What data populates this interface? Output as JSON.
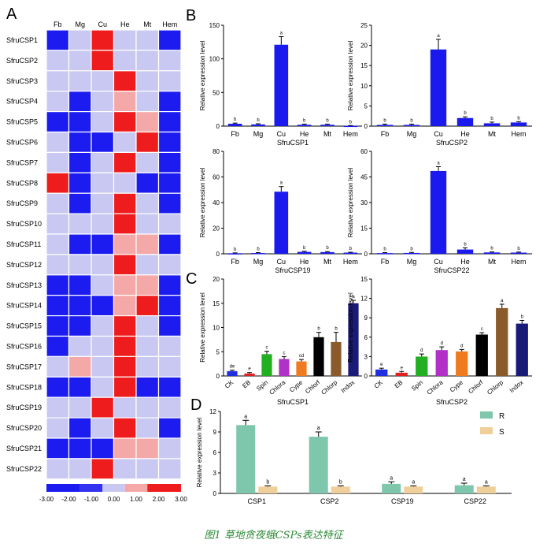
{
  "caption": "图1 草地贪夜蛾CSPs表达特征",
  "colors": {
    "bar_blue": "#1a1aee",
    "r_green": "#7fc7ac",
    "s_tan": "#f0d09a"
  },
  "heatmap": {
    "panel_label": "A",
    "columns": [
      "Fb",
      "Mg",
      "Cu",
      "He",
      "Mt",
      "Hem"
    ],
    "rows": [
      "SfruCSP1",
      "SfruCSP2",
      "SfruCSP3",
      "SfruCSP4",
      "SfruCSP5",
      "SfruCSP6",
      "SfruCSP7",
      "SfruCSP8",
      "SfruCSP9",
      "SfruCSP10",
      "SfruCSP11",
      "SfruCSP12",
      "SfruCSP13",
      "SfruCSP14",
      "SfruCSP15",
      "SfruCSP16",
      "SfruCSP17",
      "SfruCSP18",
      "SfruCSP19",
      "SfruCSP20",
      "SfruCSP21",
      "SfruCSP22"
    ],
    "values": [
      [
        -2.5,
        -0.5,
        2.5,
        -0.5,
        -0.5,
        -2.5
      ],
      [
        -0.5,
        -0.5,
        2.5,
        -0.5,
        -0.5,
        -0.5
      ],
      [
        -0.5,
        -0.5,
        -0.5,
        2.5,
        -0.5,
        -0.5
      ],
      [
        -0.5,
        -2.5,
        -0.5,
        1.0,
        -0.5,
        -2.5
      ],
      [
        -2.5,
        -2.5,
        -0.5,
        2.5,
        1.0,
        -2.5
      ],
      [
        -0.5,
        -2.5,
        -2.5,
        -0.5,
        2.5,
        -2.5
      ],
      [
        -0.5,
        -2.5,
        -0.5,
        2.5,
        -0.5,
        -2.5
      ],
      [
        2.5,
        -2.5,
        -0.5,
        -0.5,
        -2.5,
        -2.5
      ],
      [
        -0.5,
        -2.5,
        -0.5,
        2.5,
        -0.5,
        -2.5
      ],
      [
        -0.5,
        -0.5,
        -0.5,
        2.5,
        -0.5,
        -0.5
      ],
      [
        -0.5,
        -2.5,
        -2.5,
        1.0,
        1.0,
        -2.5
      ],
      [
        -0.5,
        -0.5,
        -0.5,
        2.5,
        -0.5,
        -0.5
      ],
      [
        -2.5,
        -2.5,
        -0.5,
        1.0,
        1.0,
        -2.5
      ],
      [
        -2.5,
        -2.5,
        -2.5,
        1.0,
        2.5,
        -2.5
      ],
      [
        -2.5,
        -2.5,
        -0.5,
        2.5,
        -0.5,
        -2.5
      ],
      [
        -2.5,
        -0.5,
        -0.5,
        2.5,
        -0.5,
        -0.5
      ],
      [
        -0.5,
        1.0,
        -0.5,
        2.5,
        -0.5,
        -0.5
      ],
      [
        -2.5,
        -2.5,
        -0.5,
        2.5,
        -2.5,
        -2.5
      ],
      [
        -0.5,
        -0.5,
        2.5,
        -0.5,
        -0.5,
        -0.5
      ],
      [
        -0.5,
        -2.5,
        -0.5,
        2.5,
        -0.5,
        -2.5
      ],
      [
        -2.5,
        -2.5,
        -2.5,
        1.0,
        1.0,
        -0.5
      ],
      [
        -0.5,
        -0.5,
        2.5,
        -0.5,
        -0.5,
        -0.5
      ]
    ],
    "scale_ticks": [
      "-3.00",
      "-2.00",
      "-1.00",
      "0.00",
      "1.00",
      "2.00",
      "3.00"
    ]
  },
  "chart_data": [
    {
      "panel": "B",
      "type": "bar",
      "title": "SfruCSP1",
      "ylabel": "Relative expression level",
      "categories": [
        "Fb",
        "Mg",
        "Cu",
        "He",
        "Mt",
        "Hem"
      ],
      "values": [
        3.5,
        2.5,
        121,
        2,
        2,
        0.5
      ],
      "errors": [
        1,
        1,
        12,
        1,
        1,
        0.3
      ],
      "letters": [
        "b",
        "b",
        "a",
        "b",
        "b",
        "b"
      ],
      "ylim": [
        0,
        150
      ],
      "yticks": [
        "0",
        "50",
        "100",
        "150"
      ]
    },
    {
      "panel": "B",
      "type": "bar",
      "title": "SfruCSP2",
      "ylabel": "Relative expression level",
      "categories": [
        "Fb",
        "Mg",
        "Cu",
        "He",
        "Mt",
        "Hem"
      ],
      "values": [
        0.3,
        0.3,
        19,
        2,
        0.7,
        0.9
      ],
      "errors": [
        0.2,
        0.2,
        2.5,
        0.3,
        0.3,
        0.2
      ],
      "letters": [
        "b",
        "b",
        "a",
        "b",
        "b",
        "b"
      ],
      "ylim": [
        0,
        25
      ],
      "yticks": [
        "0",
        "5",
        "10",
        "15",
        "20",
        "25"
      ]
    },
    {
      "panel": "B",
      "type": "bar",
      "title": "SfruCSP19",
      "ylabel": "Relative expression level",
      "categories": [
        "Fb",
        "Mg",
        "Cu",
        "He",
        "Mt",
        "Hem"
      ],
      "values": [
        0.4,
        0.6,
        48.5,
        1.5,
        1.3,
        0.9
      ],
      "errors": [
        0.3,
        0.3,
        4,
        0.5,
        0.4,
        0.3
      ],
      "letters": [
        "b",
        "b",
        "a",
        "b",
        "b",
        "b"
      ],
      "ylim": [
        0,
        80
      ],
      "yticks": [
        "0",
        "20",
        "40",
        "60",
        "80"
      ]
    },
    {
      "panel": "B",
      "type": "bar",
      "title": "SfruCSP22",
      "ylabel": "Relative expression level",
      "categories": [
        "Fb",
        "Mg",
        "Cu",
        "He",
        "Mt",
        "Hem"
      ],
      "values": [
        0.4,
        0.5,
        48.5,
        2.5,
        0.8,
        0.7
      ],
      "errors": [
        0.3,
        0.3,
        2.5,
        1,
        0.3,
        0.3
      ],
      "letters": [
        "b",
        "b",
        "a",
        "b",
        "b",
        "b"
      ],
      "ylim": [
        0,
        60
      ],
      "yticks": [
        "0",
        "15",
        "30",
        "45",
        "60"
      ]
    },
    {
      "panel": "C",
      "type": "bar",
      "title": "SfruCSP1",
      "ylabel": "Relative expression level",
      "categories": [
        "CK",
        "EB",
        "Spin",
        "Chlora",
        "Cype",
        "Chlorf",
        "Chlorp",
        "Indox"
      ],
      "values": [
        1,
        0.5,
        4.5,
        3.5,
        3,
        8,
        7,
        15
      ],
      "errors": [
        0.2,
        0.2,
        0.6,
        0.5,
        0.4,
        1,
        2,
        0.6
      ],
      "letters": [
        "de",
        "e",
        "c",
        "c",
        "cd",
        "b",
        "b",
        "a"
      ],
      "bar_colors": [
        "#1f2ee0",
        "#e02020",
        "#22b022",
        "#b030c8",
        "#f07a20",
        "#000000",
        "#8a5a2a",
        "#1a1a78"
      ],
      "ylim": [
        0,
        20
      ],
      "yticks": [
        "0",
        "5",
        "10",
        "15",
        "20"
      ]
    },
    {
      "panel": "C",
      "type": "bar",
      "title": "SfruCSP2",
      "ylabel": "Relative expression level",
      "categories": [
        "CK",
        "EB",
        "Spin",
        "Chlora",
        "Cype",
        "Chlorf",
        "Chlorp",
        "Indox"
      ],
      "values": [
        1,
        0.5,
        3,
        4,
        3.8,
        6.4,
        10.5,
        8.1
      ],
      "errors": [
        0.2,
        0.2,
        0.4,
        0.5,
        0.3,
        0.3,
        0.6,
        0.5
      ],
      "letters": [
        "e",
        "e",
        "d",
        "d",
        "d",
        "c",
        "a",
        "b"
      ],
      "bar_colors": [
        "#1f2ee0",
        "#e02020",
        "#22b022",
        "#b030c8",
        "#f07a20",
        "#000000",
        "#8a5a2a",
        "#1a1a78"
      ],
      "ylim": [
        0,
        15
      ],
      "yticks": [
        "0",
        "3",
        "6",
        "9",
        "12",
        "15"
      ]
    },
    {
      "panel": "D",
      "type": "bar",
      "ylabel": "Relative expression level",
      "categories": [
        "CSP1",
        "CSP2",
        "CSP19",
        "CSP22"
      ],
      "series": [
        {
          "name": "R",
          "values": [
            10,
            8.3,
            1.4,
            1.2
          ],
          "errors": [
            0.7,
            0.7,
            0.3,
            0.3
          ],
          "letters": [
            "a",
            "a",
            "a",
            "a"
          ]
        },
        {
          "name": "S",
          "values": [
            1,
            1,
            1,
            1
          ],
          "errors": [
            0.1,
            0.1,
            0.1,
            0.1
          ],
          "letters": [
            "b",
            "b",
            "a",
            "a"
          ]
        }
      ],
      "ylim": [
        0,
        12
      ],
      "yticks": [
        "0",
        "3",
        "6",
        "9",
        "12"
      ]
    }
  ],
  "panel_labels": {
    "B": "B",
    "C": "C",
    "D": "D"
  }
}
